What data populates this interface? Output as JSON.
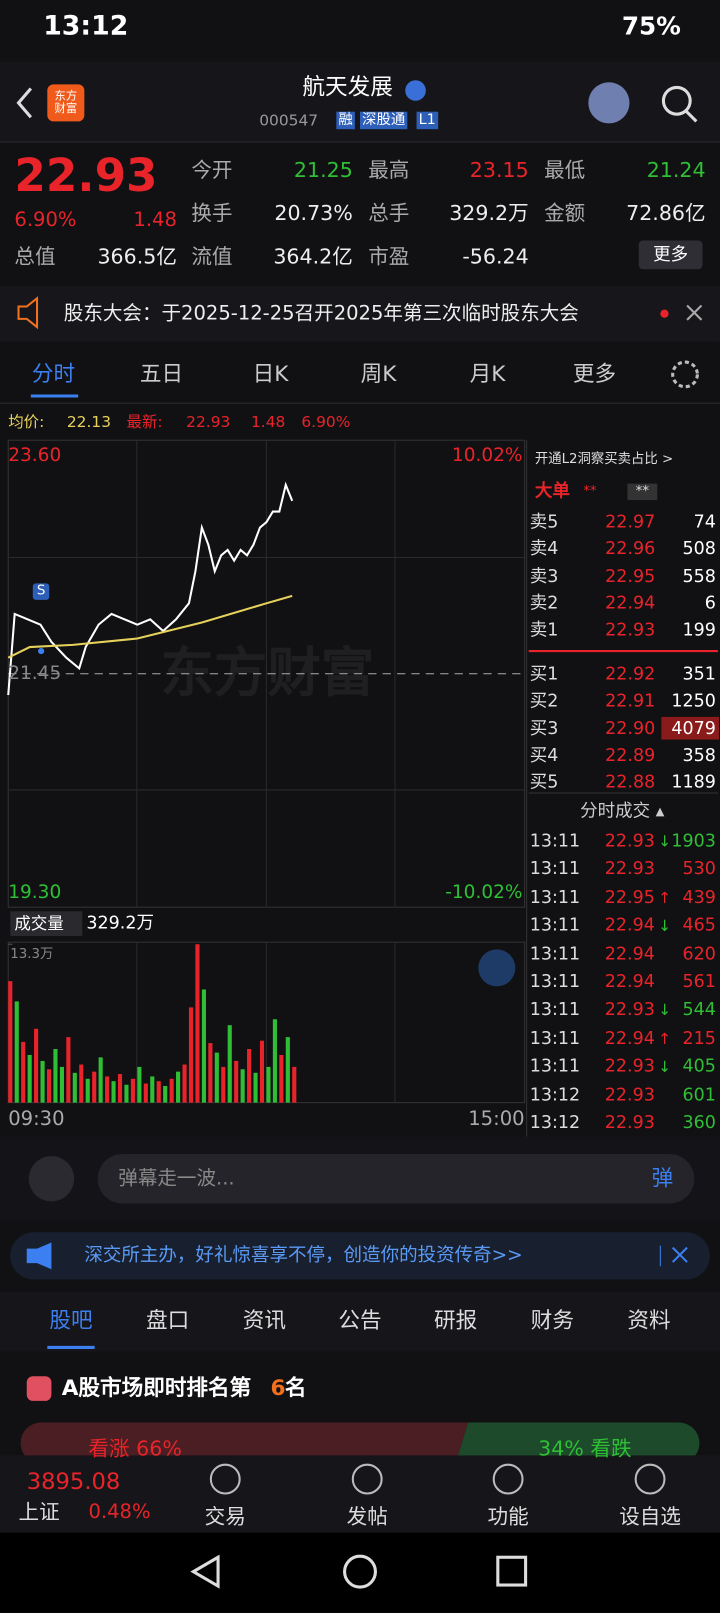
{
  "status_bar": {
    "time": "13:12",
    "battery": "75%"
  },
  "header": {
    "logo": "东方财富",
    "title": "航天发展",
    "code": "000547",
    "tags": [
      "融",
      "深股通",
      "L1"
    ]
  },
  "quote": {
    "price": "22.93",
    "change_pct": "6.90%",
    "change": "1.48",
    "more": "更多",
    "fields": [
      {
        "label": "今开",
        "value": "21.25",
        "color": "#2fbf35"
      },
      {
        "label": "最高",
        "value": "23.15",
        "color": "#e8242a"
      },
      {
        "label": "最低",
        "value": "21.24",
        "color": "#2fbf35"
      },
      {
        "label": "换手",
        "value": "20.73%"
      },
      {
        "label": "总手",
        "value": "329.2万"
      },
      {
        "label": "金额",
        "value": "72.86亿"
      },
      {
        "label": "总值",
        "value": "366.5亿"
      },
      {
        "label": "流值",
        "value": "364.2亿"
      },
      {
        "label": "市盈",
        "value": "-56.24"
      }
    ]
  },
  "notice": "股东大会：于2025-12-25召开2025年第三次临时股东大会",
  "tabs": [
    "分时",
    "五日",
    "日K",
    "周K",
    "月K",
    "更多"
  ],
  "summary": {
    "avg_label": "均价:",
    "avg": "22.13",
    "latest_label": "最新:",
    "latest": "22.93",
    "change": "1.48",
    "change_pct": "6.90%"
  },
  "chart": {
    "ylim": [
      19.3,
      23.6
    ],
    "yticks": [
      {
        "value": 23.6,
        "label": "23.60"
      },
      {
        "value": 21.45,
        "label": "21.45"
      },
      {
        "value": 19.3,
        "label": "19.30"
      }
    ],
    "pct_labels": [
      "10.02%",
      "-10.02%"
    ],
    "xlim": [
      0,
      240
    ],
    "xticks": [
      {
        "value": 0,
        "label": "09:30"
      },
      {
        "value": 240,
        "label": "15:00"
      }
    ],
    "watermark": "东方财富",
    "marker": "S",
    "price": {
      "color": "#ffffff",
      "x": [
        0,
        3,
        9,
        15,
        20,
        27,
        33,
        36,
        42,
        48,
        54,
        60,
        66,
        72,
        78,
        84,
        87,
        90,
        93,
        96,
        99,
        102,
        105,
        108,
        111,
        114,
        117,
        120,
        123,
        126,
        129,
        132
      ],
      "values": [
        21.25,
        22.01,
        21.96,
        21.91,
        21.75,
        21.6,
        21.5,
        21.7,
        21.91,
        22.01,
        21.96,
        21.91,
        21.96,
        21.85,
        21.96,
        22.11,
        22.41,
        22.82,
        22.66,
        22.41,
        22.56,
        22.61,
        22.51,
        22.61,
        22.56,
        22.66,
        22.82,
        22.87,
        22.97,
        22.97,
        23.22,
        23.07
      ]
    },
    "avg": {
      "color": "#e6d25a",
      "x": [
        0,
        10,
        30,
        60,
        90,
        120,
        132
      ],
      "values": [
        21.6,
        21.7,
        21.72,
        21.78,
        21.93,
        22.11,
        22.18
      ]
    },
    "volume_label": "成交量",
    "volume_total": "329.2万",
    "volume_max": {
      "value": 13.3,
      "label": "13.3万"
    },
    "volume": {
      "x": [
        0,
        3,
        6,
        9,
        12,
        15,
        18,
        21,
        24,
        27,
        30,
        33,
        36,
        39,
        42,
        45,
        48,
        51,
        54,
        57,
        60,
        63,
        66,
        69,
        72,
        75,
        78,
        81,
        84,
        87,
        90,
        93,
        96,
        99,
        102,
        105,
        108,
        111,
        114,
        117,
        120,
        123,
        126,
        129,
        132
      ],
      "values": [
        10.2,
        8.5,
        5.1,
        4.0,
        6.2,
        3.5,
        2.8,
        4.5,
        3.0,
        5.5,
        2.5,
        3.2,
        2.0,
        2.6,
        3.8,
        2.2,
        1.8,
        2.4,
        1.5,
        2.0,
        3.0,
        1.6,
        2.2,
        1.8,
        1.4,
        2.0,
        2.6,
        3.2,
        8.0,
        13.3,
        9.5,
        5.0,
        4.2,
        3.0,
        6.5,
        3.5,
        2.8,
        4.5,
        2.5,
        5.2,
        3.0,
        7.0,
        4.0,
        5.5,
        3.0
      ],
      "colors": [
        "#e8242a",
        "#2fbf35",
        "#e8242a",
        "#2fbf35",
        "#e8242a",
        "#2fbf35",
        "#e8242a",
        "#2fbf35",
        "#2fbf35",
        "#e8242a",
        "#2fbf35",
        "#e8242a",
        "#2fbf35",
        "#e8242a",
        "#2fbf35",
        "#e8242a",
        "#2fbf35",
        "#e8242a",
        "#2fbf35",
        "#e8242a",
        "#2fbf35",
        "#e8242a",
        "#2fbf35",
        "#e8242a",
        "#2fbf35",
        "#e8242a",
        "#2fbf35",
        "#e8242a",
        "#e8242a",
        "#e8242a",
        "#2fbf35",
        "#e8242a",
        "#2fbf35",
        "#e8242a",
        "#2fbf35",
        "#e8242a",
        "#2fbf35",
        "#e8242a",
        "#2fbf35",
        "#e8242a",
        "#2fbf35",
        "#2fbf35",
        "#e8242a",
        "#2fbf35",
        "#e8242a"
      ]
    }
  },
  "order_book": {
    "title": "开通L2洞察买卖占比 >",
    "big": "大单",
    "masked": "**",
    "asks": [
      {
        "label": "卖5",
        "price": "22.97",
        "vol": "74"
      },
      {
        "label": "卖4",
        "price": "22.96",
        "vol": "508"
      },
      {
        "label": "卖3",
        "price": "22.95",
        "vol": "558"
      },
      {
        "label": "卖2",
        "price": "22.94",
        "vol": "6"
      },
      {
        "label": "卖1",
        "price": "22.93",
        "vol": "199"
      }
    ],
    "bids": [
      {
        "label": "买1",
        "price": "22.92",
        "vol": "351"
      },
      {
        "label": "买2",
        "price": "22.91",
        "vol": "1250"
      },
      {
        "label": "买3",
        "price": "22.90",
        "vol": "4079"
      },
      {
        "label": "买4",
        "price": "22.89",
        "vol": "358"
      },
      {
        "label": "买5",
        "price": "22.88",
        "vol": "1189"
      }
    ],
    "trades_title": "分时成交 ▴",
    "trades": [
      {
        "time": "13:11",
        "price": "22.93",
        "arrow": "↓",
        "vol": "1903",
        "color": "#2fbf35"
      },
      {
        "time": "13:11",
        "price": "22.93",
        "vol": "530",
        "color": "#e8242a"
      },
      {
        "time": "13:11",
        "price": "22.95",
        "arrow": "↑",
        "vol": "439",
        "color": "#e8242a"
      },
      {
        "time": "13:11",
        "price": "22.94",
        "arrow": "↓",
        "vol": "465",
        "color": "#e8242a"
      },
      {
        "time": "13:11",
        "price": "22.94",
        "vol": "620",
        "color": "#e8242a"
      },
      {
        "time": "13:11",
        "price": "22.94",
        "vol": "561",
        "color": "#e8242a"
      },
      {
        "time": "13:11",
        "price": "22.93",
        "arrow": "↓",
        "vol": "544",
        "color": "#2fbf35"
      },
      {
        "time": "13:11",
        "price": "22.94",
        "arrow": "↑",
        "vol": "215",
        "color": "#e8242a"
      },
      {
        "time": "13:11",
        "price": "22.93",
        "arrow": "↓",
        "vol": "405",
        "color": "#2fbf35"
      },
      {
        "time": "13:12",
        "price": "22.93",
        "vol": "601",
        "color": "#2fbf35"
      },
      {
        "time": "13:12",
        "price": "22.93",
        "vol": "360",
        "color": "#2fbf35"
      }
    ]
  },
  "comment_box": {
    "placeholder": "弹幕走一波...",
    "button": "弹"
  },
  "banner": "深交所主办，好礼惊喜享不停，创造你的投资传奇>>",
  "sub_tabs": [
    "股吧",
    "盘口",
    "资讯",
    "公告",
    "研报",
    "财务",
    "资料"
  ],
  "rank": {
    "prefix": "A股市场即时排名第",
    "rank": "6",
    "suffix": "名"
  },
  "sentiment": {
    "up": "看涨 66%",
    "down": "34% 看跌"
  },
  "bottom_bar": {
    "index_value": "3895.08",
    "index_name": "上证",
    "index_change": "0.48%",
    "nav": [
      "交易",
      "发帖",
      "功能",
      "设自选"
    ]
  }
}
